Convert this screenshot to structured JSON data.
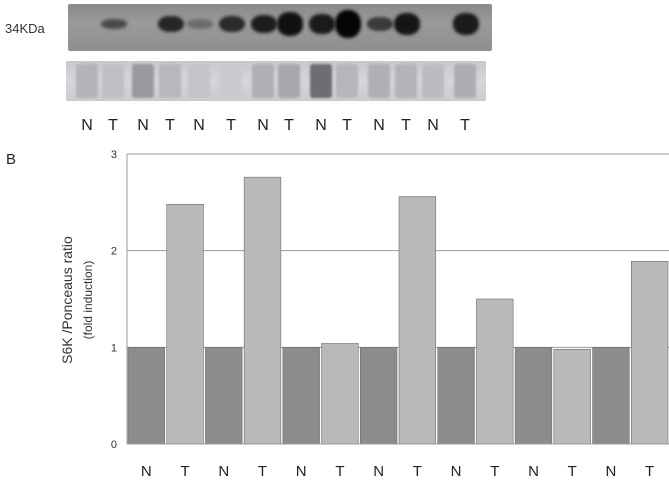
{
  "panel_a": {
    "marker_label": "34KDa",
    "lanes": [
      "N",
      "T",
      "N",
      "T",
      "N",
      "T",
      "N",
      "T",
      "N",
      "T",
      "N",
      "T",
      "N",
      "T"
    ]
  },
  "panel_b_label": "B",
  "chart_data": {
    "type": "bar",
    "categories": [
      "N",
      "T",
      "N",
      "T",
      "N",
      "T",
      "N",
      "T",
      "N",
      "T",
      "N",
      "T",
      "N",
      "T"
    ],
    "values": [
      1,
      2.48,
      1,
      2.76,
      1,
      1.04,
      1,
      2.56,
      1,
      1.5,
      1,
      0.98,
      1,
      1.89
    ],
    "ylabel": "S6K /Ponceaus ratio",
    "ylabel_sub": "(fold induction)",
    "ylim": [
      0,
      3
    ],
    "yticks": [
      0,
      1,
      2,
      3
    ],
    "grid": true,
    "colors": {
      "N": "#8c8c8c",
      "T": "#b9b9b9"
    }
  }
}
